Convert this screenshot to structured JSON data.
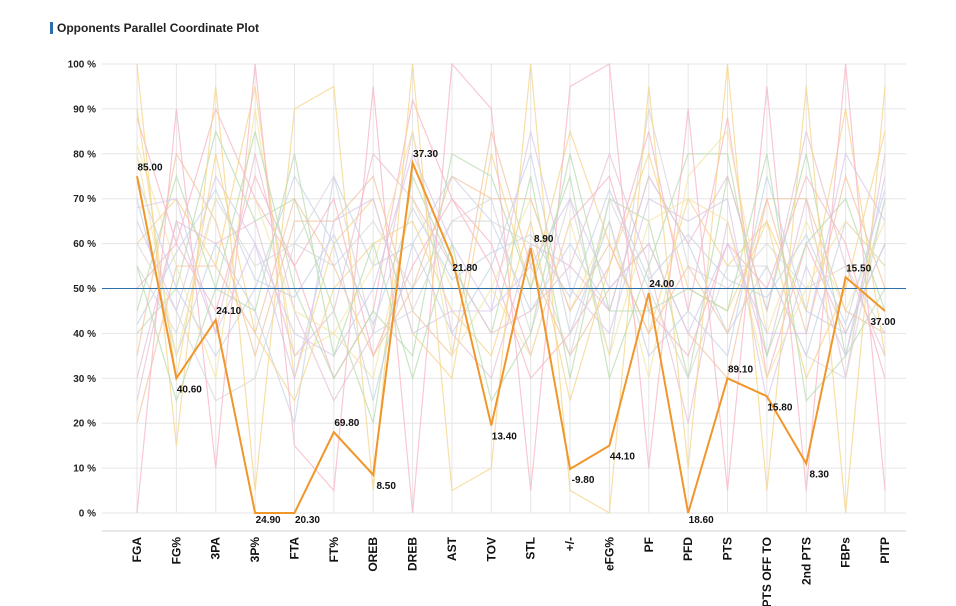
{
  "title": "Opponents Parallel Coordinate Plot",
  "colors": {
    "title_bar": "#2e6fa7",
    "highlight": "#f0962a",
    "reference_line": "#2e6fa7",
    "grid": "#e6e6e6",
    "background_lines": [
      "#f7b6c4",
      "#f5d48a",
      "#b8dcb0",
      "#c7d4e6",
      "#e6c3d6",
      "#d8d8d8",
      "#f3e6a6",
      "#f2c6a2",
      "#d9c9ec"
    ]
  },
  "chart_data": {
    "type": "parallel_coordinates",
    "title": "Opponents Parallel Coordinate Plot",
    "categories": [
      "FGA",
      "FG%",
      "3PA",
      "3P%",
      "FTA",
      "FT%",
      "OREB",
      "DREB",
      "AST",
      "TOV",
      "STL",
      "+/-",
      "eFG%",
      "PF",
      "PFD",
      "PTS",
      "PTS OFF TO",
      "2nd PTS",
      "FBPs",
      "PITP"
    ],
    "y_ticks": [
      "0 %",
      "10 %",
      "20 %",
      "30 %",
      "40 %",
      "50 %",
      "60 %",
      "70 %",
      "80 %",
      "90 %",
      "100 %"
    ],
    "ylim": [
      0,
      100
    ],
    "grid": true,
    "reference_line": 50,
    "highlight_series": {
      "percentiles": [
        75,
        30,
        43,
        0,
        0,
        18,
        8.5,
        78,
        57,
        19.5,
        59,
        9.8,
        15,
        49,
        0,
        30,
        26,
        11,
        52.5,
        45
      ],
      "labels": [
        "85.00",
        "40.60",
        "24.10",
        "24.90",
        "20.30",
        "69.80",
        "8.50",
        "37.30",
        "21.80",
        "13.40",
        "8.90",
        "-9.80",
        "44.10",
        "24.00",
        "18.60",
        "89.10",
        "15.80",
        "8.30",
        "15.50",
        "37.00"
      ]
    },
    "background_series": [
      [
        88,
        60,
        90,
        70,
        55,
        30,
        45,
        92,
        70,
        55,
        30,
        40,
        55,
        85,
        45,
        88,
        30,
        60,
        40,
        60
      ],
      [
        60,
        70,
        55,
        95,
        30,
        60,
        70,
        40,
        30,
        80,
        50,
        85,
        60,
        40,
        70,
        55,
        65,
        45,
        90,
        35
      ],
      [
        40,
        50,
        85,
        65,
        70,
        45,
        20,
        75,
        55,
        40,
        75,
        30,
        70,
        65,
        30,
        75,
        45,
        80,
        35,
        70
      ],
      [
        70,
        35,
        60,
        45,
        20,
        75,
        55,
        60,
        75,
        65,
        45,
        60,
        45,
        75,
        60,
        40,
        55,
        35,
        65,
        55
      ],
      [
        25,
        65,
        40,
        80,
        45,
        25,
        40,
        85,
        40,
        30,
        60,
        55,
        80,
        55,
        20,
        65,
        35,
        70,
        30,
        80
      ],
      [
        55,
        40,
        70,
        55,
        60,
        55,
        65,
        50,
        65,
        70,
        40,
        70,
        35,
        90,
        55,
        50,
        60,
        50,
        55,
        40
      ],
      [
        82,
        55,
        30,
        90,
        35,
        40,
        30,
        70,
        50,
        50,
        70,
        45,
        65,
        30,
        75,
        85,
        40,
        65,
        45,
        65
      ],
      [
        35,
        80,
        65,
        35,
        65,
        65,
        75,
        45,
        35,
        85,
        55,
        35,
        50,
        60,
        40,
        30,
        70,
        40,
        75,
        50
      ],
      [
        65,
        45,
        75,
        60,
        40,
        35,
        50,
        80,
        60,
        45,
        85,
        50,
        40,
        70,
        65,
        70,
        25,
        55,
        35,
        75
      ],
      [
        50,
        60,
        45,
        75,
        55,
        70,
        35,
        55,
        70,
        60,
        35,
        65,
        75,
        45,
        35,
        60,
        50,
        75,
        60,
        30
      ],
      [
        90,
        30,
        80,
        40,
        25,
        50,
        60,
        65,
        45,
        35,
        65,
        25,
        55,
        80,
        50,
        45,
        65,
        30,
        50,
        85
      ],
      [
        45,
        75,
        50,
        85,
        50,
        30,
        45,
        35,
        80,
        75,
        50,
        75,
        30,
        55,
        80,
        80,
        35,
        60,
        70,
        45
      ],
      [
        75,
        50,
        35,
        50,
        75,
        60,
        25,
        60,
        40,
        55,
        80,
        40,
        65,
        35,
        45,
        35,
        75,
        45,
        40,
        60
      ],
      [
        30,
        65,
        60,
        65,
        35,
        45,
        80,
        70,
        55,
        40,
        45,
        55,
        45,
        75,
        60,
        75,
        45,
        85,
        55,
        35
      ],
      [
        60,
        45,
        25,
        30,
        60,
        75,
        40,
        45,
        65,
        65,
        60,
        35,
        70,
        50,
        30,
        55,
        55,
        35,
        30,
        70
      ],
      [
        80,
        35,
        70,
        70,
        45,
        40,
        55,
        85,
        35,
        50,
        35,
        65,
        35,
        65,
        70,
        65,
        30,
        50,
        65,
        55
      ],
      [
        20,
        55,
        55,
        40,
        70,
        55,
        35,
        50,
        75,
        70,
        70,
        45,
        60,
        40,
        55,
        40,
        70,
        70,
        45,
        40
      ],
      [
        68,
        70,
        40,
        60,
        30,
        65,
        70,
        40,
        45,
        45,
        55,
        70,
        50,
        60,
        40,
        60,
        40,
        40,
        80,
        65
      ],
      [
        0,
        90,
        10,
        100,
        15,
        5,
        95,
        0,
        100,
        90,
        5,
        95,
        100,
        10,
        90,
        5,
        95,
        5,
        100,
        5
      ],
      [
        100,
        15,
        95,
        5,
        90,
        95,
        5,
        100,
        5,
        10,
        100,
        5,
        0,
        95,
        10,
        100,
        5,
        95,
        0,
        95
      ],
      [
        55,
        25,
        50,
        45,
        80,
        35,
        60,
        30,
        60,
        25,
        40,
        80,
        45,
        45,
        50,
        45,
        80,
        25,
        35,
        50
      ],
      [
        42,
        58,
        72,
        52,
        48,
        62,
        42,
        68,
        52,
        58,
        62,
        48,
        72,
        52,
        62,
        52,
        48,
        62,
        42,
        72
      ]
    ]
  }
}
